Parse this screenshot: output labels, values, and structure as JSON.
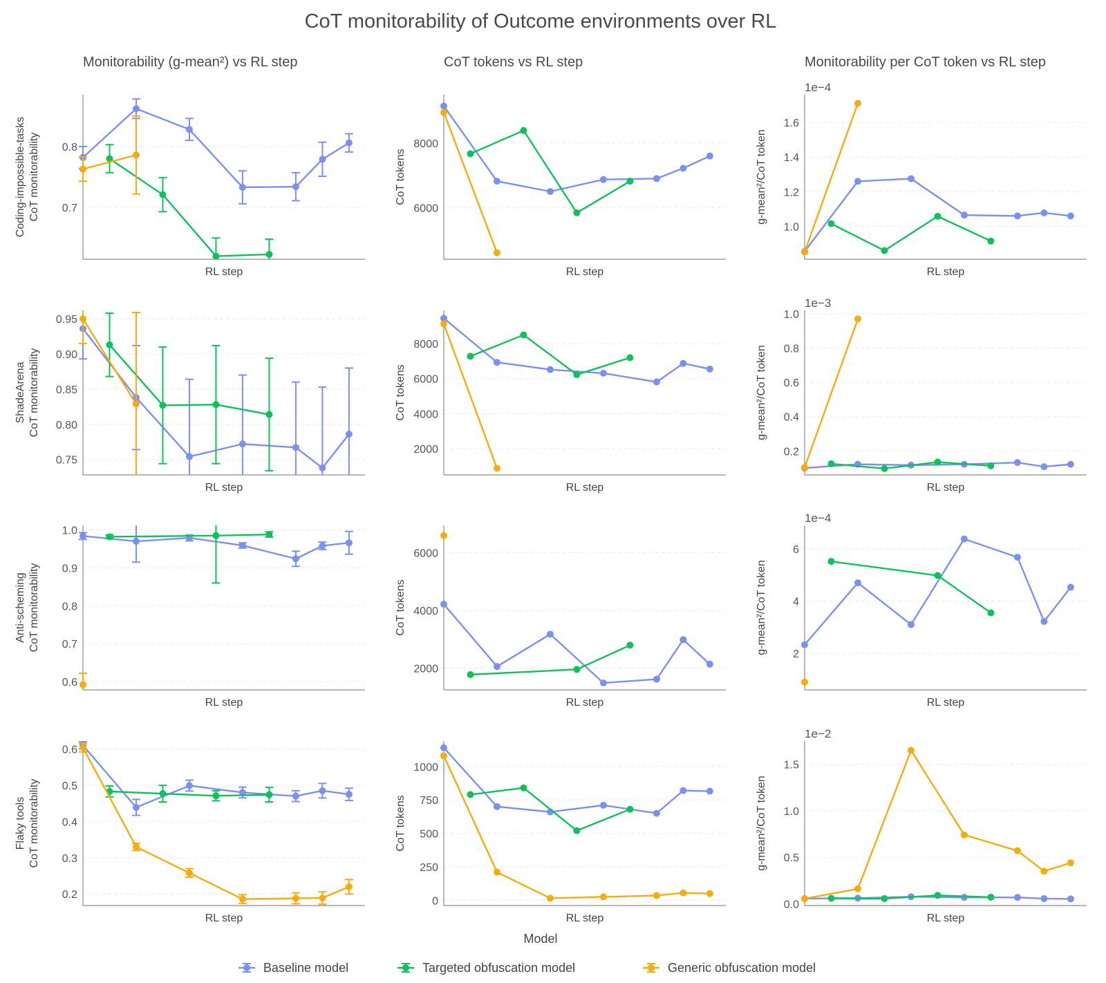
{
  "figure": {
    "title": "CoT monitorability of Outcome environments over RL",
    "column_titles": [
      "Monitorability (g-mean²) vs RL step",
      "CoT tokens vs RL step",
      "Monitorability per CoT token vs RL step"
    ],
    "legend": {
      "title": "Model",
      "entries": [
        "Baseline model",
        "Targeted obfuscation model",
        "Generic obfuscation model"
      ]
    },
    "series_colors": {
      "Baseline model": "#7b90f0",
      "Targeted obfuscation model": "#10c05a",
      "Generic obfuscation model": "#f7ab0e"
    }
  },
  "chart_data": [
    {
      "type": "line",
      "row": 0,
      "col": 0,
      "title": "Monitorability (g-mean²) vs RL step",
      "xlabel": "RL step",
      "ylabel": "Coding-impossible-tasks\nCoT monitorability",
      "xlim": [
        0,
        10.6
      ],
      "ylim": [
        0.615,
        0.885
      ],
      "yticks": [
        0.7,
        0.8
      ],
      "ytick_labels": [
        "0.7",
        "0.8"
      ],
      "series": [
        {
          "name": "Baseline model",
          "x": [
            0,
            2,
            4,
            6,
            8,
            9,
            10
          ],
          "y": [
            0.782,
            0.862,
            0.828,
            0.733,
            0.734,
            0.779,
            0.806
          ],
          "err": [
            0.018,
            0.016,
            0.018,
            0.027,
            0.023,
            0.028,
            0.015
          ]
        },
        {
          "name": "Targeted obfuscation model",
          "x": [
            1,
            3,
            5,
            7
          ],
          "y": [
            0.78,
            0.721,
            0.62,
            0.623
          ],
          "err": [
            0.023,
            0.028,
            0.03,
            0.025
          ]
        },
        {
          "name": "Generic obfuscation model",
          "x": [
            0,
            2
          ],
          "y": [
            0.763,
            0.786
          ],
          "err": [
            0.02,
            0.064
          ]
        }
      ]
    },
    {
      "type": "line",
      "row": 0,
      "col": 1,
      "title": "CoT tokens vs RL step",
      "xlabel": "RL step",
      "ylabel": "CoT tokens",
      "xlim": [
        0,
        10.6
      ],
      "ylim": [
        4400,
        9500
      ],
      "yticks": [
        6000,
        8000
      ],
      "ytick_labels": [
        "6000",
        "8000"
      ],
      "series": [
        {
          "name": "Baseline model",
          "x": [
            0,
            2,
            4,
            6,
            8,
            9,
            10
          ],
          "y": [
            9150,
            6820,
            6500,
            6870,
            6900,
            7220,
            7600
          ]
        },
        {
          "name": "Targeted obfuscation model",
          "x": [
            1,
            3,
            5,
            7
          ],
          "y": [
            7670,
            8390,
            5840,
            6820
          ]
        },
        {
          "name": "Generic obfuscation model",
          "x": [
            0,
            2
          ],
          "y": [
            8950,
            4600
          ]
        }
      ]
    },
    {
      "type": "line",
      "row": 0,
      "col": 2,
      "title": "Monitorability per CoT token vs RL step",
      "xlabel": "RL step",
      "ylabel": "g-mean²/CoT token",
      "axis_multiplier": "1e−4",
      "xlim": [
        0,
        10.6
      ],
      "ylim": [
        0.81,
        1.76
      ],
      "yticks": [
        1.0,
        1.2,
        1.4,
        1.6
      ],
      "ytick_labels": [
        "1.0",
        "1.2",
        "1.4",
        "1.6"
      ],
      "series": [
        {
          "name": "Baseline model",
          "x": [
            0,
            2,
            4,
            6,
            8,
            9,
            10
          ],
          "y": [
            0.855,
            1.26,
            1.275,
            1.065,
            1.06,
            1.078,
            1.06
          ]
        },
        {
          "name": "Targeted obfuscation model",
          "x": [
            1,
            3,
            5,
            7
          ],
          "y": [
            1.015,
            0.86,
            1.058,
            0.915
          ]
        },
        {
          "name": "Generic obfuscation model",
          "x": [
            0,
            2
          ],
          "y": [
            0.852,
            1.71
          ]
        }
      ]
    },
    {
      "type": "line",
      "row": 1,
      "col": 0,
      "xlabel": "RL step",
      "ylabel": "ShadeArena\nCoT monitorability",
      "xlim": [
        0,
        10.6
      ],
      "ylim": [
        0.728,
        0.962
      ],
      "yticks": [
        0.75,
        0.8,
        0.85,
        0.9,
        0.95
      ],
      "ytick_labels": [
        "0.75",
        "0.80",
        "0.85",
        "0.90",
        "0.95"
      ],
      "series": [
        {
          "name": "Baseline model",
          "x": [
            0,
            2,
            4,
            6,
            8,
            9,
            10
          ],
          "y": [
            0.936,
            0.838,
            0.754,
            0.772,
            0.767,
            0.738,
            0.786
          ],
          "err": [
            0.043,
            0.074,
            0.11,
            0.098,
            0.093,
            0.115,
            0.094
          ]
        },
        {
          "name": "Targeted obfuscation model",
          "x": [
            1,
            3,
            5,
            7
          ],
          "y": [
            0.913,
            0.827,
            0.828,
            0.814
          ],
          "err": [
            0.045,
            0.083,
            0.084,
            0.08
          ]
        },
        {
          "name": "Generic obfuscation model",
          "x": [
            0,
            2
          ],
          "y": [
            0.95,
            0.829
          ],
          "err": [
            0.035,
            0.13
          ]
        }
      ]
    },
    {
      "type": "line",
      "row": 1,
      "col": 1,
      "xlabel": "RL step",
      "ylabel": "CoT tokens",
      "xlim": [
        0,
        10.6
      ],
      "ylim": [
        500,
        9900
      ],
      "yticks": [
        2000,
        4000,
        6000,
        8000
      ],
      "ytick_labels": [
        "2000",
        "4000",
        "6000",
        "8000"
      ],
      "series": [
        {
          "name": "Baseline model",
          "x": [
            0,
            2,
            4,
            6,
            8,
            9,
            10
          ],
          "y": [
            9450,
            6930,
            6520,
            6310,
            5810,
            6870,
            6550
          ]
        },
        {
          "name": "Targeted obfuscation model",
          "x": [
            1,
            3,
            5,
            7
          ],
          "y": [
            7280,
            8500,
            6230,
            7200
          ]
        },
        {
          "name": "Generic obfuscation model",
          "x": [
            0,
            2
          ],
          "y": [
            9130,
            880
          ]
        }
      ]
    },
    {
      "type": "line",
      "row": 1,
      "col": 2,
      "xlabel": "RL step",
      "ylabel": "g-mean²/CoT token",
      "axis_multiplier": "1e−3",
      "xlim": [
        0,
        10.6
      ],
      "ylim": [
        0.06,
        1.02
      ],
      "yticks": [
        0.2,
        0.4,
        0.6,
        0.8,
        1.0
      ],
      "ytick_labels": [
        "0.2",
        "0.4",
        "0.6",
        "0.8",
        "1.0"
      ],
      "series": [
        {
          "name": "Baseline model",
          "x": [
            0,
            2,
            4,
            6,
            8,
            9,
            10
          ],
          "y": [
            0.1,
            0.122,
            0.117,
            0.122,
            0.132,
            0.108,
            0.122
          ]
        },
        {
          "name": "Targeted obfuscation model",
          "x": [
            1,
            3,
            5,
            7
          ],
          "y": [
            0.125,
            0.097,
            0.135,
            0.113
          ]
        },
        {
          "name": "Generic obfuscation model",
          "x": [
            0,
            2
          ],
          "y": [
            0.104,
            0.97
          ]
        }
      ]
    },
    {
      "type": "line",
      "row": 2,
      "col": 0,
      "xlabel": "RL step",
      "ylabel": "Anti-scheming\nCoT monitorability",
      "xlim": [
        0,
        10.6
      ],
      "ylim": [
        0.578,
        1.012
      ],
      "yticks": [
        0.6,
        0.7,
        0.8,
        0.9,
        1.0
      ],
      "ytick_labels": [
        "0.6",
        "0.7",
        "0.8",
        "0.9",
        "1.0"
      ],
      "series": [
        {
          "name": "Baseline model",
          "x": [
            0,
            2,
            4,
            6,
            8,
            9,
            10
          ],
          "y": [
            0.984,
            0.97,
            0.979,
            0.959,
            0.924,
            0.958,
            0.966
          ],
          "err": [
            0.009,
            0.055,
            0.008,
            0.007,
            0.02,
            0.01,
            0.03
          ]
        },
        {
          "name": "Targeted obfuscation model",
          "x": [
            1,
            5,
            7
          ],
          "y": [
            0.982,
            0.985,
            0.988
          ],
          "err": [
            0.005,
            0.125,
            0.007
          ]
        },
        {
          "name": "Generic obfuscation model",
          "x": [
            0
          ],
          "y": [
            0.592
          ],
          "err": [
            0.03
          ]
        }
      ]
    },
    {
      "type": "line",
      "row": 2,
      "col": 1,
      "xlabel": "RL step",
      "ylabel": "CoT tokens",
      "xlim": [
        0,
        10.6
      ],
      "ylim": [
        1250,
        6950
      ],
      "yticks": [
        2000,
        4000,
        6000
      ],
      "ytick_labels": [
        "2000",
        "4000",
        "6000"
      ],
      "series": [
        {
          "name": "Baseline model",
          "x": [
            0,
            2,
            4,
            6,
            8,
            9,
            10
          ],
          "y": [
            4220,
            2060,
            3180,
            1490,
            1620,
            2990,
            2140
          ]
        },
        {
          "name": "Targeted obfuscation model",
          "x": [
            1,
            5,
            7
          ],
          "y": [
            1780,
            1960,
            2800
          ]
        },
        {
          "name": "Generic obfuscation model",
          "x": [
            0
          ],
          "y": [
            6600
          ]
        }
      ]
    },
    {
      "type": "line",
      "row": 2,
      "col": 2,
      "xlabel": "RL step",
      "ylabel": "g-mean²/CoT token",
      "axis_multiplier": "1e−4",
      "xlim": [
        0,
        10.6
      ],
      "ylim": [
        0.6,
        6.9
      ],
      "yticks": [
        2,
        4,
        6
      ],
      "ytick_labels": [
        "2",
        "4",
        "6"
      ],
      "series": [
        {
          "name": "Baseline model",
          "x": [
            0,
            2,
            4,
            6,
            8,
            9,
            10
          ],
          "y": [
            2.33,
            4.7,
            3.1,
            6.38,
            5.68,
            3.22,
            4.53
          ]
        },
        {
          "name": "Targeted obfuscation model",
          "x": [
            1,
            5,
            7
          ],
          "y": [
            5.52,
            4.98,
            3.55
          ]
        },
        {
          "name": "Generic obfuscation model",
          "x": [
            0
          ],
          "y": [
            0.9
          ]
        }
      ]
    },
    {
      "type": "line",
      "row": 3,
      "col": 0,
      "xlabel": "RL step",
      "ylabel": "Flaky tools\nCoT monitorability",
      "xlim": [
        0,
        10.6
      ],
      "ylim": [
        0.168,
        0.622
      ],
      "yticks": [
        0.2,
        0.3,
        0.4,
        0.5,
        0.6
      ],
      "ytick_labels": [
        "0.2",
        "0.3",
        "0.4",
        "0.5",
        "0.6"
      ],
      "series": [
        {
          "name": "Baseline model",
          "x": [
            0,
            2,
            4,
            6,
            8,
            9,
            10
          ],
          "y": [
            0.61,
            0.439,
            0.499,
            0.48,
            0.47,
            0.485,
            0.475
          ],
          "err": [
            0.01,
            0.022,
            0.015,
            0.015,
            0.015,
            0.02,
            0.017
          ]
        },
        {
          "name": "Targeted obfuscation model",
          "x": [
            1,
            3,
            5,
            7
          ],
          "y": [
            0.483,
            0.477,
            0.471,
            0.474
          ],
          "err": [
            0.015,
            0.023,
            0.014,
            0.02
          ]
        },
        {
          "name": "Generic obfuscation model",
          "x": [
            0,
            2,
            4,
            6,
            8,
            9,
            10
          ],
          "y": [
            0.604,
            0.33,
            0.258,
            0.186,
            0.188,
            0.189,
            0.22
          ],
          "err": [
            0.012,
            0.01,
            0.012,
            0.012,
            0.015,
            0.017,
            0.02
          ]
        }
      ]
    },
    {
      "type": "line",
      "row": 3,
      "col": 1,
      "xlabel": "RL step",
      "ylabel": "CoT tokens",
      "xlim": [
        0,
        10.6
      ],
      "ylim": [
        -40,
        1190
      ],
      "yticks": [
        0,
        250,
        500,
        750,
        1000
      ],
      "ytick_labels": [
        "0",
        "250",
        "500",
        "750",
        "1000"
      ],
      "series": [
        {
          "name": "Baseline model",
          "x": [
            0,
            2,
            4,
            6,
            8,
            9,
            10
          ],
          "y": [
            1140,
            700,
            660,
            710,
            650,
            820,
            815
          ]
        },
        {
          "name": "Targeted obfuscation model",
          "x": [
            1,
            3,
            5,
            7
          ],
          "y": [
            790,
            840,
            520,
            680
          ]
        },
        {
          "name": "Generic obfuscation model",
          "x": [
            0,
            2,
            4,
            6,
            8,
            9,
            10
          ],
          "y": [
            1080,
            210,
            15,
            25,
            35,
            55,
            50
          ]
        }
      ]
    },
    {
      "type": "line",
      "row": 3,
      "col": 2,
      "xlabel": "RL step",
      "ylabel": "g-mean²/CoT token",
      "axis_multiplier": "1e−2",
      "xlim": [
        0,
        10.6
      ],
      "ylim": [
        -0.02,
        1.75
      ],
      "yticks": [
        0.0,
        0.5,
        1.0,
        1.5
      ],
      "ytick_labels": [
        "0.0",
        "0.5",
        "1.0",
        "1.5"
      ],
      "series": [
        {
          "name": "Baseline model",
          "x": [
            0,
            2,
            4,
            6,
            8,
            9,
            10
          ],
          "y": [
            0.055,
            0.06,
            0.075,
            0.068,
            0.068,
            0.055,
            0.052
          ]
        },
        {
          "name": "Targeted obfuscation model",
          "x": [
            1,
            3,
            5,
            7
          ],
          "y": [
            0.058,
            0.055,
            0.09,
            0.07
          ]
        },
        {
          "name": "Generic obfuscation model",
          "x": [
            0,
            2,
            4,
            6,
            8,
            9,
            10
          ],
          "y": [
            0.055,
            0.16,
            1.65,
            0.74,
            0.57,
            0.35,
            0.44
          ]
        }
      ]
    }
  ]
}
